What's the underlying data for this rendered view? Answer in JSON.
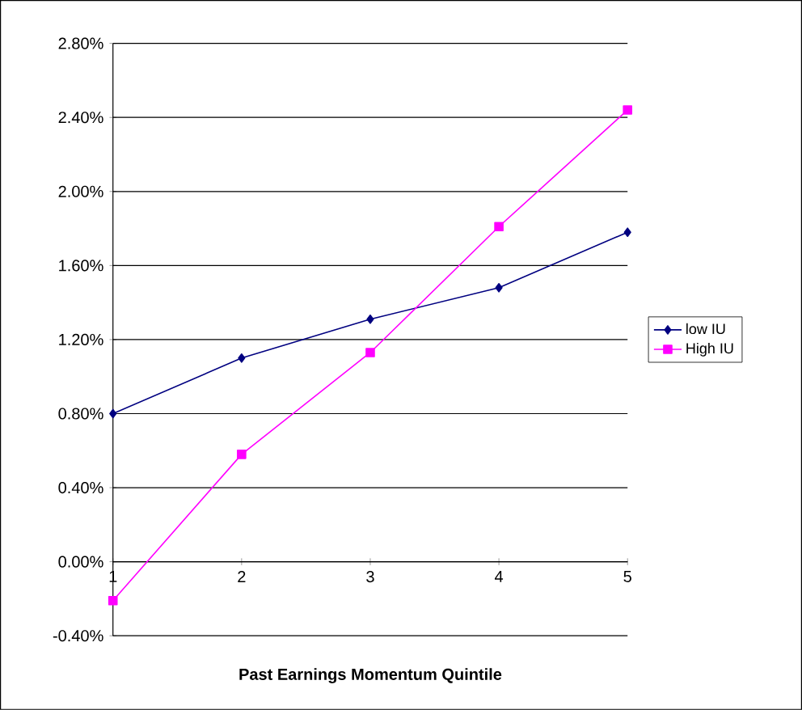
{
  "chart_data": {
    "type": "line",
    "xlabel": "**Past Earnings Momentum Quintile**",
    "x": [
      1,
      2,
      3,
      4,
      5
    ],
    "xlim": [
      1,
      5
    ],
    "xticks": [
      1,
      2,
      3,
      4,
      5
    ],
    "ylim": [
      -0.4,
      2.8
    ],
    "yticks": [
      {
        "value": -0.4,
        "label": "-0.40%"
      },
      {
        "value": 0,
        "label": "0.00%"
      },
      {
        "value": 0.4,
        "label": "0.40%"
      },
      {
        "value": 0.8,
        "label": "0.80%"
      },
      {
        "value": 1.2,
        "label": "1.20%"
      },
      {
        "value": 1.6,
        "label": "1.60%"
      },
      {
        "value": 2.0,
        "label": "2.00%"
      },
      {
        "value": 2.4,
        "label": "2.40%"
      },
      {
        "value": 2.8,
        "label": "2.80%"
      }
    ],
    "grid": "y",
    "legend": "right",
    "line_style": "solid",
    "series": [
      {
        "name": "low IU",
        "color": "#000080",
        "marker": "diamond",
        "values": [
          0.8,
          1.1,
          1.31,
          1.48,
          1.78
        ]
      },
      {
        "name": "High IU",
        "color": "#ff00ff",
        "marker": "square",
        "values": [
          -0.21,
          0.58,
          1.13,
          1.81,
          2.44
        ]
      }
    ]
  }
}
